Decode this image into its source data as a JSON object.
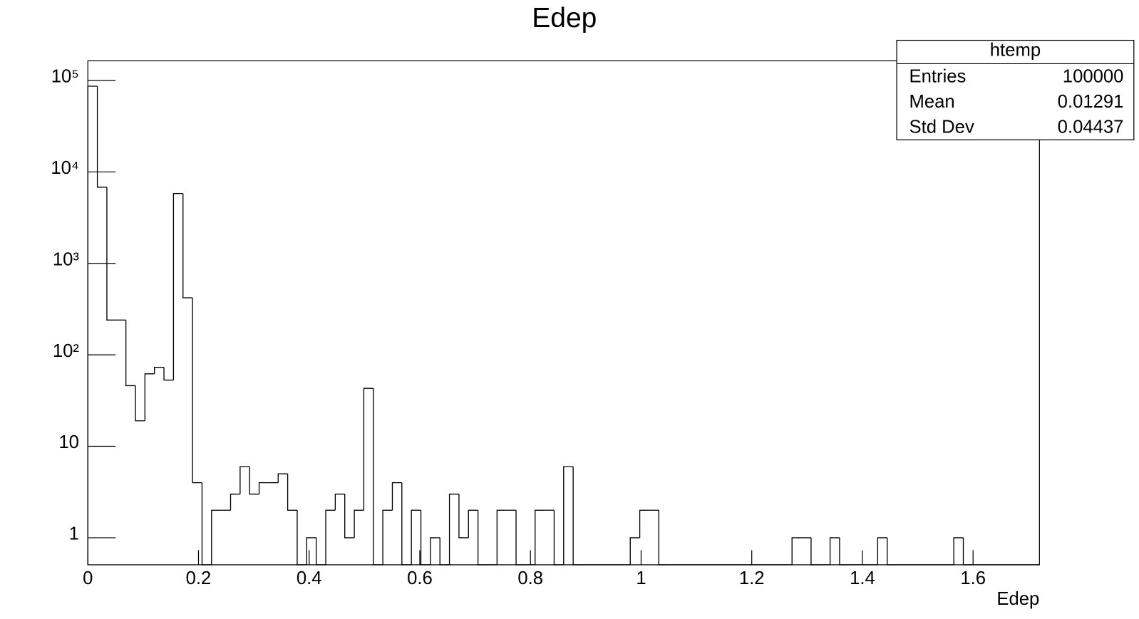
{
  "chart_data": {
    "type": "histogram",
    "title": "Edep",
    "x_label": "Edep",
    "log_y": true,
    "color": "#000000",
    "bins": [
      0,
      0.0172,
      0.0344,
      0.0516,
      0.0688,
      0.086,
      0.1032,
      0.1204,
      0.1376,
      0.1548,
      0.172,
      0.1892,
      0.2064,
      0.2236,
      0.2408,
      0.258,
      0.2752,
      0.2924,
      0.3096,
      0.3268,
      0.344,
      0.3612,
      0.3784,
      0.3956,
      0.4128,
      0.43,
      0.4472,
      0.4644,
      0.4816,
      0.4988,
      0.516,
      0.5332,
      0.5504,
      0.5676,
      0.5848,
      0.602,
      0.6192,
      0.6364,
      0.6536,
      0.6708,
      0.688,
      0.7052,
      0.7224,
      0.7396,
      0.7568,
      0.774,
      0.7912,
      0.8084,
      0.8256,
      0.8428,
      0.86,
      0.8772,
      0.8944,
      0.9116,
      0.9288,
      0.946,
      0.9632,
      0.9804,
      0.9976,
      1.0148,
      1.032,
      1.0492,
      1.0664,
      1.0836,
      1.1008,
      1.118,
      1.1352,
      1.1524,
      1.1696,
      1.1868,
      1.204,
      1.2212,
      1.2384,
      1.2556,
      1.2728,
      1.29,
      1.3072,
      1.3244,
      1.3416,
      1.3588,
      1.376,
      1.3932,
      1.4104,
      1.4276,
      1.4448,
      1.462,
      1.4792,
      1.4964,
      1.5136,
      1.5308,
      1.548,
      1.5652,
      1.5824,
      1.5996,
      1.6168,
      1.634,
      1.6512,
      1.6684,
      1.6856,
      1.7028,
      1.72
    ],
    "values": [
      86500,
      6800,
      240,
      240,
      46,
      19,
      62,
      73,
      53,
      5800,
      420,
      4,
      0,
      2,
      2,
      3,
      6,
      3,
      4,
      4,
      5,
      2,
      0,
      1,
      0,
      2,
      3,
      1,
      2,
      43,
      0,
      2,
      4,
      0,
      2,
      0,
      1,
      0,
      3,
      1,
      2,
      0,
      0,
      2,
      2,
      0,
      0,
      2,
      2,
      0,
      6,
      0,
      0,
      0,
      0,
      0,
      0,
      1,
      2,
      2,
      0,
      0,
      0,
      0,
      0,
      0,
      0,
      0,
      0,
      0,
      0,
      0,
      0,
      0,
      1,
      1,
      0,
      0,
      1,
      0,
      0,
      0,
      0,
      1,
      0,
      0,
      0,
      0,
      0,
      0,
      0,
      1,
      0,
      0,
      0,
      0,
      0,
      0,
      0,
      0
    ],
    "xlim": [
      0,
      1.72
    ],
    "ylim": [
      0.506,
      164000
    ],
    "xticks": [
      0,
      0.2,
      0.4,
      0.6,
      0.8,
      1,
      1.2,
      1.4,
      1.6
    ],
    "yticks": [
      1,
      10,
      {
        "value": 100,
        "label": "10²"
      },
      {
        "value": 1000,
        "label": "10³"
      },
      {
        "value": 10000,
        "label": "10⁴"
      },
      {
        "value": 100000,
        "label": "10⁵"
      }
    ],
    "stats": {
      "name": "htemp",
      "rows": [
        [
          "Entries",
          100000
        ],
        [
          "Mean",
          0.01291
        ],
        [
          "Std Dev",
          0.04437
        ]
      ]
    }
  }
}
